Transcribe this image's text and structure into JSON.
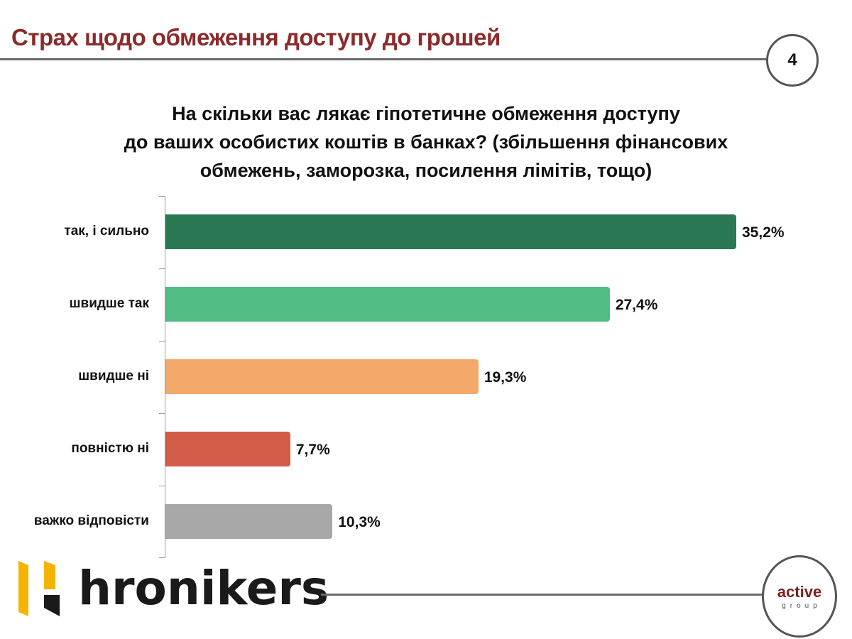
{
  "header": {
    "title": "Страх щодо обмеження доступу до грошей",
    "page_number": "4"
  },
  "question": {
    "lines": [
      "На скільки вас лякає гіпотетичне обмеження доступу",
      "до ваших особистих коштів в банках? (збільшення фінансових",
      "обмежень, заморозка, посилення лімітів, тощо)"
    ]
  },
  "chart_data": {
    "type": "bar",
    "orientation": "horizontal",
    "title": "На скільки вас лякає гіпотетичне обмеження доступу до ваших особистих коштів в банках? (збільшення фінансових обмежень, заморозка, посилення лімітів, тощо)",
    "categories": [
      "так, і сильно",
      "швидше так",
      "швидше ні",
      "повністю ні",
      "важко відповісти"
    ],
    "values": [
      35.2,
      27.4,
      19.3,
      7.7,
      10.3
    ],
    "value_labels": [
      "35,2%",
      "27,4%",
      "19,3%",
      "7,7%",
      "10,3%"
    ],
    "colors": [
      "#2a7753",
      "#52bc87",
      "#f2a96a",
      "#d35c49",
      "#a8a8a8"
    ],
    "xlabel": "",
    "ylabel": "",
    "unit": "%",
    "grid": false,
    "legend": "none"
  },
  "footer": {
    "brand_left": "hronikers",
    "brand_right_top": "active",
    "brand_right_bottom": "group"
  },
  "colors": {
    "title": "#8b2b2b",
    "rule": "#6b6b6b",
    "logo_yellow": "#f5b400",
    "logo_black": "#1a1a1a"
  }
}
